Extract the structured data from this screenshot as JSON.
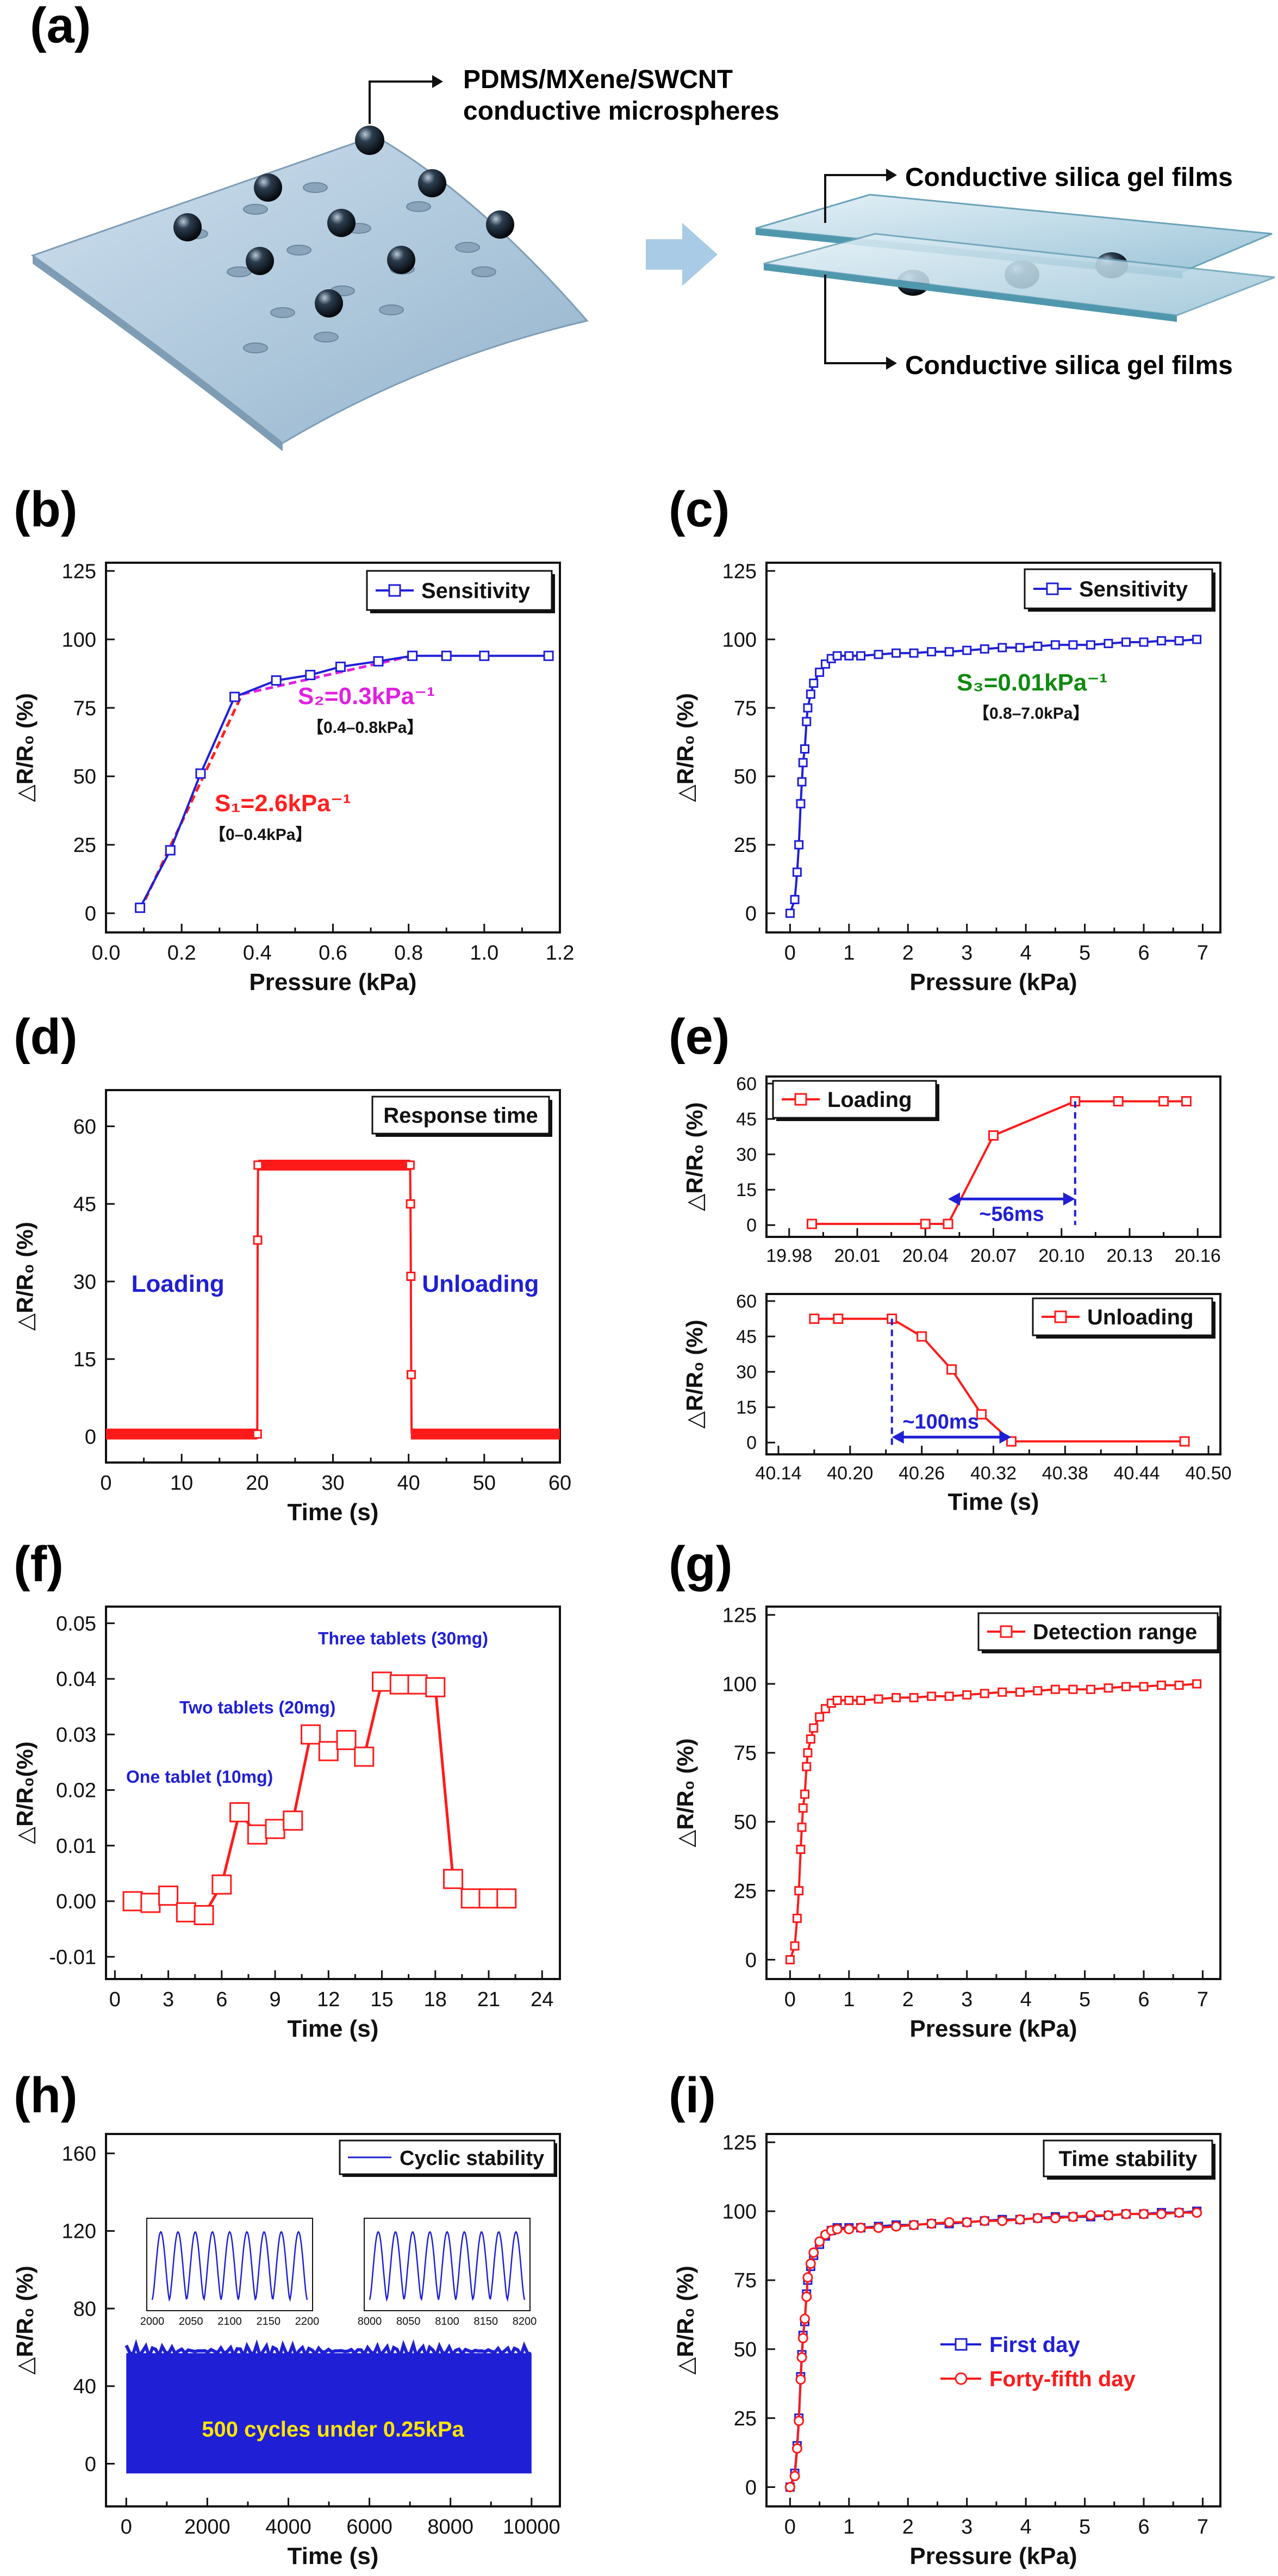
{
  "panel_labels": [
    "(a)",
    "(b)",
    "(c)",
    "(d)",
    "(e)",
    "(f)",
    "(g)",
    "(h)",
    "(i)"
  ],
  "schematic": {
    "microsphere_label_1": "PDMS/MXene/SWCNT",
    "microsphere_label_2": "conductive microspheres",
    "film_label_top": "Conductive silica gel films",
    "film_label_bottom": "Conductive silica gel films"
  },
  "chart_data": [
    {
      "id": "b",
      "type": "line",
      "xlabel": "Pressure (kPa)",
      "ylabel": "△R/R₀ (%)",
      "xlim": [
        0.0,
        1.2
      ],
      "ylim": [
        -7,
        128
      ],
      "xticks": [
        0.0,
        0.1,
        0.2,
        0.3,
        0.4,
        0.5,
        0.6,
        0.7,
        0.8,
        0.9,
        1.0,
        1.1,
        1.2
      ],
      "xticklabels": [
        "0.0",
        "",
        "0.2",
        "",
        "0.4",
        "",
        "0.6",
        "",
        "0.8",
        "",
        "1.0",
        "",
        "1.2"
      ],
      "yticks": [
        0,
        25,
        50,
        75,
        100,
        125
      ],
      "series": [
        {
          "name": "Sensitivity",
          "color": "#1f1fd6",
          "x": [
            0.09,
            0.17,
            0.25,
            0.34,
            0.45,
            0.54,
            0.62,
            0.72,
            0.81,
            0.9,
            1.0,
            1.17
          ],
          "y": [
            2,
            23,
            51,
            79,
            85,
            87,
            90,
            92,
            94,
            94,
            94,
            94
          ]
        }
      ],
      "fits": [
        {
          "color": "#ff2020",
          "x": [
            0.09,
            0.36
          ],
          "y": [
            1,
            80
          ]
        },
        {
          "color": "#e020e0",
          "x": [
            0.36,
            0.81
          ],
          "y": [
            80,
            94
          ]
        }
      ],
      "annotations": {
        "s1": "S₁=2.6kPa⁻¹",
        "s1_range": "【0–0.4kPa】",
        "s2": "S₂=0.3kPa⁻¹",
        "s2_range": "【0.4–0.8kPa】"
      },
      "legend": "top-right"
    },
    {
      "id": "c",
      "type": "line",
      "xlabel": "Pressure (kPa)",
      "ylabel": "△R/R₀ (%)",
      "xlim": [
        -0.4,
        7.3
      ],
      "ylim": [
        -7,
        128
      ],
      "xticks": [
        0,
        0.5,
        1,
        1.5,
        2,
        2.5,
        3,
        3.5,
        4,
        4.5,
        5,
        5.5,
        6,
        6.5,
        7
      ],
      "xticklabels": [
        "0",
        "",
        "1",
        "",
        "2",
        "",
        "3",
        "",
        "4",
        "",
        "5",
        "",
        "6",
        "",
        "7"
      ],
      "yticks": [
        0,
        25,
        50,
        75,
        100,
        125
      ],
      "series": [
        {
          "name": "Sensitivity",
          "color": "#1f1fd6",
          "x": [
            0,
            0.08,
            0.12,
            0.15,
            0.18,
            0.2,
            0.22,
            0.25,
            0.28,
            0.3,
            0.35,
            0.4,
            0.5,
            0.6,
            0.7,
            0.8,
            1.0,
            1.2,
            1.5,
            1.8,
            2.1,
            2.4,
            2.7,
            3.0,
            3.3,
            3.6,
            3.9,
            4.2,
            4.5,
            4.8,
            5.1,
            5.4,
            5.7,
            6.0,
            6.3,
            6.6,
            6.9
          ],
          "y": [
            0,
            5,
            15,
            25,
            40,
            48,
            55,
            60,
            70,
            75,
            80,
            84,
            88,
            91,
            93,
            94,
            94,
            94,
            94.5,
            95,
            95,
            95.5,
            95.5,
            96,
            96.5,
            97,
            97,
            97.5,
            98,
            98,
            98,
            98.5,
            99,
            99,
            99.5,
            99.5,
            100
          ]
        }
      ],
      "annotations": {
        "s3": "S₃=0.01kPa⁻¹",
        "s3_range": "【0.8–7.0kPa】"
      },
      "legend": "top-right"
    },
    {
      "id": "d",
      "type": "line",
      "xlabel": "Time (s)",
      "ylabel": "△R/R₀ (%)",
      "xlim": [
        0,
        60
      ],
      "ylim": [
        -5,
        67
      ],
      "xticks": [
        0,
        5,
        10,
        15,
        20,
        25,
        30,
        35,
        40,
        45,
        50,
        55,
        60
      ],
      "xticklabels": [
        "0",
        "",
        "10",
        "",
        "20",
        "",
        "30",
        "",
        "40",
        "",
        "50",
        "",
        "60"
      ],
      "yticks": [
        0,
        15,
        30,
        45,
        60
      ],
      "series": [
        {
          "name": "Response time",
          "color": "#ff1a1a",
          "segments": [
            {
              "x0": 0,
              "x1": 20,
              "y": 0.5
            },
            {
              "x0": 20.1,
              "x1": 40.2,
              "y": 52.5
            },
            {
              "x0": 40.3,
              "x1": 60,
              "y": 0.5
            }
          ],
          "rise": {
            "x": [
              20,
              20.05,
              20.1
            ],
            "y": [
              0.5,
              38,
              52.5
            ]
          },
          "fall": {
            "x": [
              40.2,
              40.25,
              40.3,
              40.35
            ],
            "y": [
              52.5,
              45,
              31,
              12
            ]
          }
        }
      ],
      "annotations": {
        "loading": "Loading",
        "unloading": "Unloading"
      },
      "legend": "top-right"
    },
    {
      "id": "e1",
      "type": "line",
      "xlabel": "",
      "ylabel": "△R/R₀ (%)",
      "xlim": [
        19.97,
        20.17
      ],
      "ylim": [
        -5,
        63
      ],
      "xticks": [
        19.98,
        19.995,
        20.01,
        20.025,
        20.04,
        20.055,
        20.07,
        20.085,
        20.1,
        20.115,
        20.13,
        20.145,
        20.16
      ],
      "xticklabels": [
        "19.98",
        "",
        "20.01",
        "",
        "20.04",
        "",
        "20.07",
        "",
        "20.10",
        "",
        "20.13",
        "",
        "20.16"
      ],
      "yticks": [
        0,
        15,
        30,
        45,
        60
      ],
      "series": [
        {
          "name": "Loading",
          "color": "#ff1a1a",
          "x": [
            19.99,
            20.04,
            20.05,
            20.07,
            20.106,
            20.125,
            20.145,
            20.155
          ],
          "y": [
            0.5,
            0.5,
            0.5,
            38,
            52.5,
            52.5,
            52.5,
            52.5
          ]
        }
      ],
      "annotations": {
        "interval": "~56ms",
        "x_start": 20.05,
        "x_end": 20.106
      },
      "legend": "top-left"
    },
    {
      "id": "e2",
      "type": "line",
      "xlabel": "Time (s)",
      "ylabel": "△R/R₀ (%)",
      "xlim": [
        40.13,
        40.51
      ],
      "ylim": [
        -5,
        63
      ],
      "xticks": [
        40.14,
        40.17,
        40.2,
        40.23,
        40.26,
        40.29,
        40.32,
        40.35,
        40.38,
        40.41,
        40.44,
        40.47,
        40.5
      ],
      "xticklabels": [
        "40.14",
        "",
        "40.20",
        "",
        "40.26",
        "",
        "40.32",
        "",
        "40.38",
        "",
        "40.44",
        "",
        "40.50"
      ],
      "yticks": [
        0,
        15,
        30,
        45,
        60
      ],
      "series": [
        {
          "name": "Unloading",
          "color": "#ff1a1a",
          "x": [
            40.17,
            40.19,
            40.235,
            40.26,
            40.285,
            40.31,
            40.335,
            40.48
          ],
          "y": [
            52.5,
            52.5,
            52.5,
            45,
            31,
            12,
            0.5,
            0.5
          ]
        }
      ],
      "annotations": {
        "interval": "~100ms",
        "x_start": 40.235,
        "x_end": 40.335
      },
      "legend": "top-right"
    },
    {
      "id": "f",
      "type": "line",
      "xlabel": "Time (s)",
      "ylabel": "△R/R₀(%)",
      "xlim": [
        -0.5,
        25
      ],
      "ylim": [
        -0.014,
        0.053
      ],
      "xticks": [
        0,
        1.5,
        3,
        4.5,
        6,
        7.5,
        9,
        10.5,
        12,
        13.5,
        15,
        16.5,
        18,
        19.5,
        21,
        22.5,
        24
      ],
      "xticklabels": [
        "0",
        "",
        "3",
        "",
        "6",
        "",
        "9",
        "",
        "12",
        "",
        "15",
        "",
        "18",
        "",
        "21",
        "",
        "24"
      ],
      "yticks": [
        -0.01,
        0.0,
        0.01,
        0.02,
        0.03,
        0.04,
        0.05
      ],
      "yticklabels": [
        "-0.01",
        "0.00",
        "0.01",
        "0.02",
        "0.03",
        "0.04",
        "0.05"
      ],
      "series": [
        {
          "name": "",
          "color": "#ff1a1a",
          "x": [
            1,
            2,
            3,
            4,
            5,
            6,
            7,
            8,
            9,
            10,
            11,
            12,
            13,
            14,
            15,
            16,
            17,
            18,
            19,
            20,
            21,
            22
          ],
          "y": [
            0.0,
            -0.0003,
            0.001,
            -0.002,
            -0.0025,
            0.003,
            0.016,
            0.012,
            0.013,
            0.0145,
            0.03,
            0.027,
            0.029,
            0.026,
            0.0395,
            0.039,
            0.039,
            0.0385,
            0.004,
            0.0005,
            0.0005,
            0.0005
          ]
        }
      ],
      "annotations": {
        "one": "One tablet (10mg)",
        "two": "Two tablets (20mg)",
        "three": "Three tablets (30mg)"
      }
    },
    {
      "id": "g",
      "type": "line",
      "xlabel": "Pressure (kPa)",
      "ylabel": "△R/R₀ (%)",
      "xlim": [
        -0.4,
        7.3
      ],
      "ylim": [
        -7,
        128
      ],
      "xticks": [
        0,
        0.5,
        1,
        1.5,
        2,
        2.5,
        3,
        3.5,
        4,
        4.5,
        5,
        5.5,
        6,
        6.5,
        7
      ],
      "xticklabels": [
        "0",
        "",
        "1",
        "",
        "2",
        "",
        "3",
        "",
        "4",
        "",
        "5",
        "",
        "6",
        "",
        "7"
      ],
      "yticks": [
        0,
        25,
        50,
        75,
        100,
        125
      ],
      "series": [
        {
          "name": "Detection range",
          "color": "#ff1a1a",
          "x": [
            0,
            0.08,
            0.12,
            0.15,
            0.18,
            0.2,
            0.22,
            0.25,
            0.28,
            0.3,
            0.35,
            0.4,
            0.5,
            0.6,
            0.7,
            0.8,
            1.0,
            1.2,
            1.5,
            1.8,
            2.1,
            2.4,
            2.7,
            3.0,
            3.3,
            3.6,
            3.9,
            4.2,
            4.5,
            4.8,
            5.1,
            5.4,
            5.7,
            6.0,
            6.3,
            6.6,
            6.9
          ],
          "y": [
            0,
            5,
            15,
            25,
            40,
            48,
            55,
            60,
            70,
            75,
            80,
            84,
            88,
            91,
            93,
            94,
            94,
            94,
            94.5,
            95,
            95,
            95.5,
            95.5,
            96,
            96.5,
            97,
            97,
            97.5,
            98,
            98,
            98,
            98.5,
            99,
            99,
            99.5,
            99.5,
            100
          ]
        }
      ],
      "legend": "top-right"
    },
    {
      "id": "h",
      "type": "line",
      "xlabel": "Time (s)",
      "ylabel": "△R/R₀ (%)",
      "xlim": [
        -500,
        10700
      ],
      "ylim": [
        -22,
        170
      ],
      "xticks": [
        0,
        1000,
        2000,
        3000,
        4000,
        5000,
        6000,
        7000,
        8000,
        9000,
        10000
      ],
      "xticklabels": [
        "0",
        "",
        "2000",
        "",
        "4000",
        "",
        "6000",
        "",
        "8000",
        "",
        "10000"
      ],
      "yticks": [
        0,
        40,
        80,
        120,
        160
      ],
      "series": [
        {
          "name": "Cyclic stability",
          "color": "#1f1fd6",
          "x_range": [
            0,
            10000
          ],
          "y_range": [
            -5,
            57
          ]
        }
      ],
      "annotations": {
        "cycles": "500 cycles under 0.25kPa"
      },
      "insets": [
        {
          "xticks": [
            2000,
            2050,
            2100,
            2150,
            2200
          ],
          "xticklabels": [
            "2000",
            "2050",
            "2100",
            "2150",
            "2200"
          ],
          "peaks": 9
        },
        {
          "xticks": [
            8000,
            8050,
            8100,
            8150,
            8200
          ],
          "xticklabels": [
            "8000",
            "8050",
            "8100",
            "8150",
            "8200"
          ],
          "peaks": 9
        }
      ],
      "legend": "top-right"
    },
    {
      "id": "i",
      "type": "line",
      "xlabel": "Pressure (kPa)",
      "ylabel": "△R/R₀ (%)",
      "xlim": [
        -0.4,
        7.3
      ],
      "ylim": [
        -7,
        128
      ],
      "xticks": [
        0,
        0.5,
        1,
        1.5,
        2,
        2.5,
        3,
        3.5,
        4,
        4.5,
        5,
        5.5,
        6,
        6.5,
        7
      ],
      "xticklabels": [
        "0",
        "",
        "1",
        "",
        "2",
        "",
        "3",
        "",
        "4",
        "",
        "5",
        "",
        "6",
        "",
        "7"
      ],
      "yticks": [
        0,
        25,
        50,
        75,
        100,
        125
      ],
      "series": [
        {
          "name": "First day",
          "color": "#1f1fd6",
          "x": [
            0,
            0.08,
            0.12,
            0.15,
            0.18,
            0.2,
            0.22,
            0.25,
            0.28,
            0.3,
            0.35,
            0.4,
            0.5,
            0.6,
            0.7,
            0.8,
            1.0,
            1.2,
            1.5,
            1.8,
            2.1,
            2.4,
            2.7,
            3.0,
            3.3,
            3.6,
            3.9,
            4.2,
            4.5,
            4.8,
            5.1,
            5.4,
            5.7,
            6.0,
            6.3,
            6.6,
            6.9
          ],
          "y": [
            0,
            5,
            15,
            25,
            40,
            48,
            55,
            60,
            70,
            75,
            80,
            84,
            88,
            91,
            93,
            94,
            94,
            94,
            94.5,
            95,
            95,
            95.5,
            95.5,
            96,
            96.5,
            97,
            97,
            97.5,
            98,
            98,
            98,
            98.5,
            99,
            99,
            99.5,
            99.5,
            100
          ]
        },
        {
          "name": "Forty-fifth day",
          "color": "#ff1a1a",
          "x": [
            0,
            0.08,
            0.12,
            0.15,
            0.18,
            0.2,
            0.22,
            0.25,
            0.28,
            0.3,
            0.35,
            0.4,
            0.5,
            0.6,
            0.7,
            0.8,
            1.0,
            1.2,
            1.5,
            1.8,
            2.1,
            2.4,
            2.7,
            3.0,
            3.3,
            3.6,
            3.9,
            4.2,
            4.5,
            4.8,
            5.1,
            5.4,
            5.7,
            6.0,
            6.3,
            6.6,
            6.9
          ],
          "y": [
            0,
            4,
            14,
            24,
            39,
            47,
            54,
            61,
            69,
            76,
            81,
            85,
            89,
            91.5,
            93,
            93.5,
            93.5,
            94,
            94,
            94.5,
            95,
            95.5,
            96,
            96,
            96.5,
            96.5,
            97,
            97.5,
            97.5,
            98,
            98.5,
            98.5,
            99,
            99,
            99,
            99.5,
            99.5
          ]
        }
      ],
      "legend_title": "Time stability",
      "legend": "top-right"
    }
  ]
}
